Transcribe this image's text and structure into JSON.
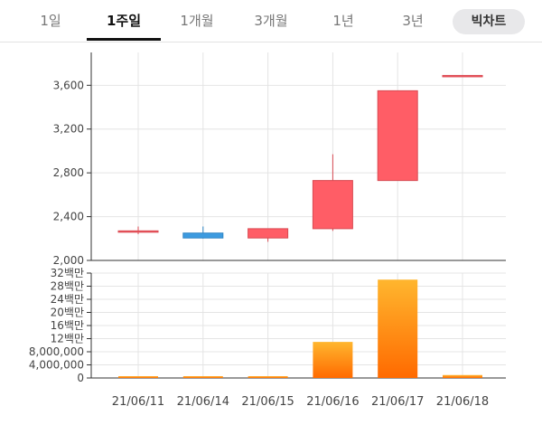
{
  "tabs": [
    {
      "label": "1일"
    },
    {
      "label": "1주일"
    },
    {
      "label": "1개월"
    },
    {
      "label": "3개월"
    },
    {
      "label": "1년"
    },
    {
      "label": "3년"
    }
  ],
  "active_tab": "1주일",
  "big_chart_label": "빅차트",
  "colors": {
    "up": "#ff5d66",
    "down": "#3d9be0",
    "volume_top": "#ffb62e",
    "volume_bottom": "#ff6a00",
    "grid": "#e4e4e4",
    "axis": "#333333"
  },
  "chart_data": [
    {
      "type": "candlestick",
      "categories": [
        "21/06/11",
        "21/06/14",
        "21/06/15",
        "21/06/16",
        "21/06/17",
        "21/06/18"
      ],
      "ohlc": [
        {
          "open": 2270,
          "high": 2310,
          "low": 2240,
          "close": 2270
        },
        {
          "open": 2250,
          "high": 2310,
          "low": 2200,
          "close": 2205
        },
        {
          "open": 2205,
          "high": 2290,
          "low": 2170,
          "close": 2290
        },
        {
          "open": 2290,
          "high": 2970,
          "low": 2270,
          "close": 2730
        },
        {
          "open": 2730,
          "high": 3550,
          "low": 2730,
          "close": 3550
        },
        {
          "open": 3690,
          "high": 3690,
          "low": 3690,
          "close": 3690
        }
      ],
      "ylim": [
        2000,
        3900
      ],
      "yticks": [
        2000,
        2400,
        2800,
        3200,
        3600
      ],
      "ytick_labels": [
        "2,000",
        "2,400",
        "2,800",
        "3,200",
        "3,600"
      ],
      "grid": true
    },
    {
      "type": "bar",
      "categories": [
        "21/06/11",
        "21/06/14",
        "21/06/15",
        "21/06/16",
        "21/06/17",
        "21/06/18"
      ],
      "values": [
        300000,
        300000,
        300000,
        11000000,
        30000000,
        900000
      ],
      "ylim": [
        0,
        32000000
      ],
      "yticks": [
        0,
        4000000,
        8000000,
        12000000,
        16000000,
        20000000,
        24000000,
        28000000,
        32000000
      ],
      "ytick_labels": [
        "0",
        "4,000,000",
        "8,000,000",
        "12백만",
        "16백만",
        "20백만",
        "24백만",
        "28백만",
        "32백만"
      ],
      "grid": true
    }
  ]
}
